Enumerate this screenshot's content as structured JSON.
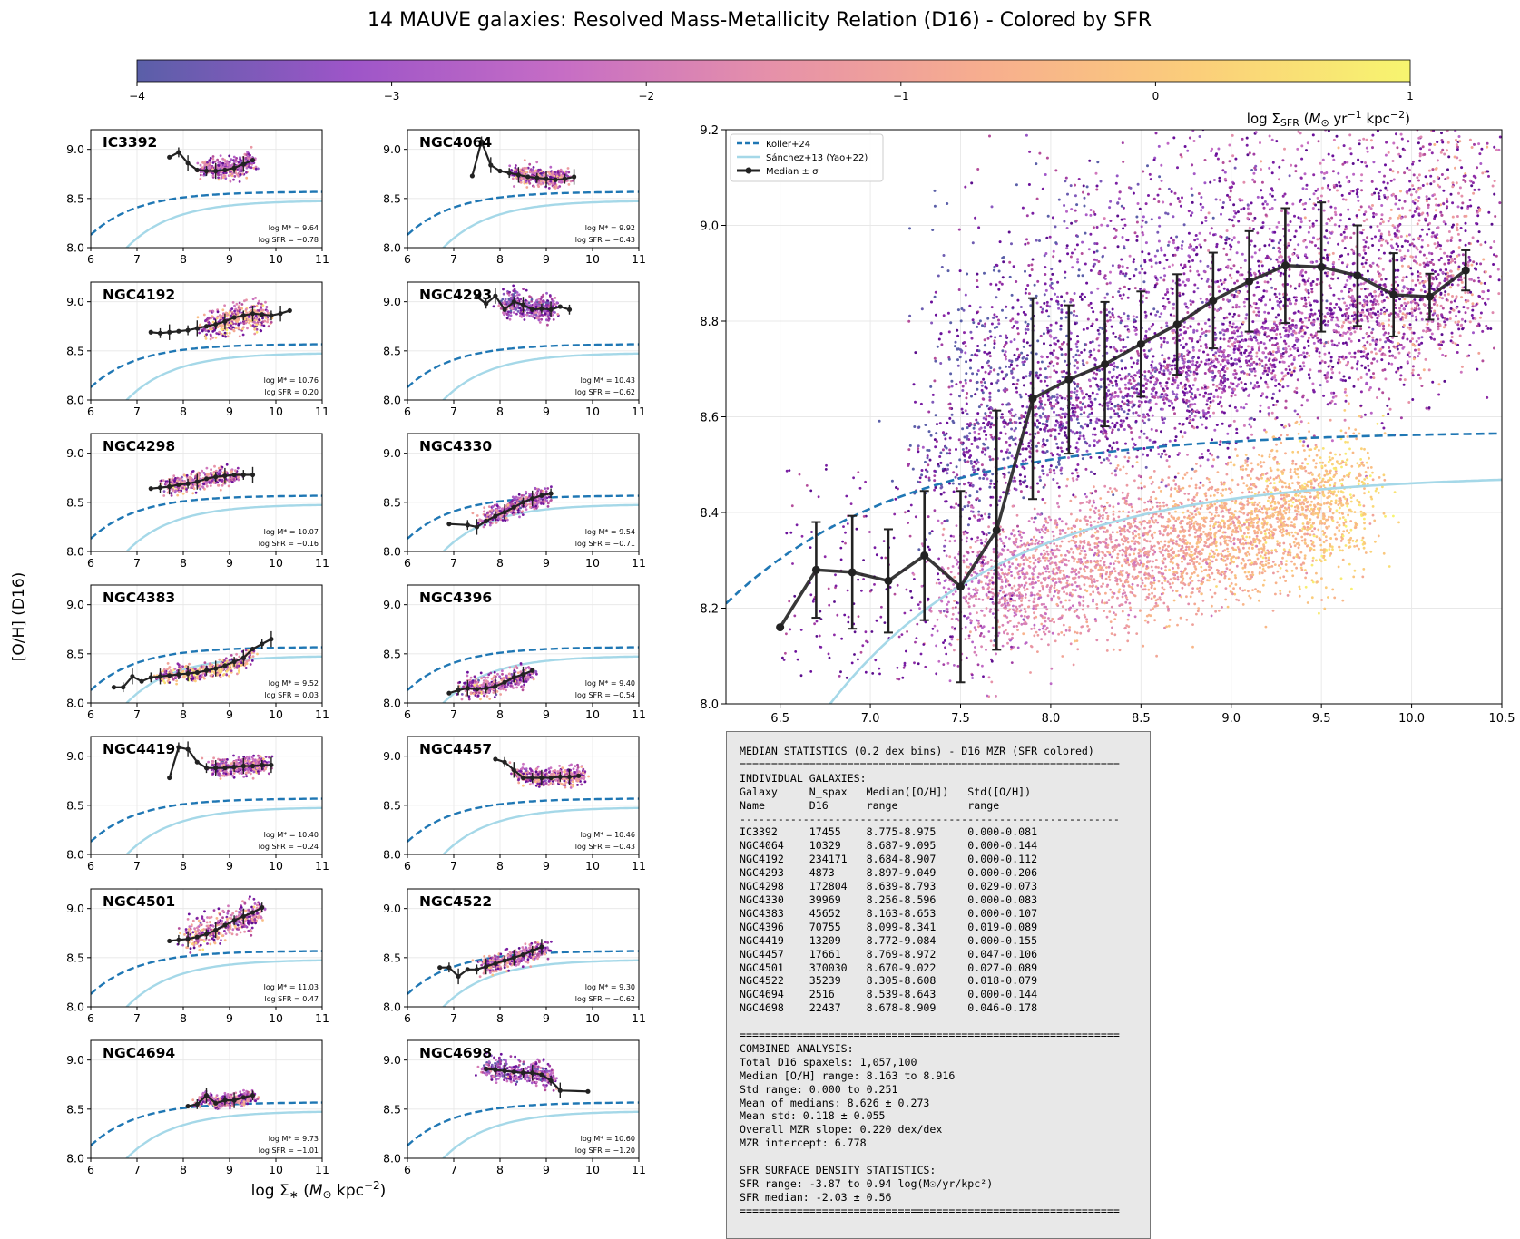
{
  "figure": {
    "title": "14 MAUVE galaxies: Resolved Mass-Metallicity Relation (D16) - Colored by SFR",
    "ylabel": "[O/H] (D16)",
    "xlabel": "log Σ_* (M_⊙ kpc^-2)"
  },
  "colorbar": {
    "ticks": [
      "−4",
      "−3",
      "−2",
      "−1",
      "0",
      "1"
    ],
    "label": "log Σ_SFR (M_⊙ yr^-1 kpc^-2)",
    "range": [
      -4,
      1
    ],
    "colormap": [
      "#5a5fa8",
      "#9d55c8",
      "#c66dc5",
      "#e691a9",
      "#f7ae8e",
      "#fbce7a",
      "#f7f56f"
    ]
  },
  "colors": {
    "koller": "#1f77b4",
    "sanchez": "#a5d8e8",
    "median": "#222222",
    "stats_bg": "#e8e8e8"
  },
  "legend": [
    "Koller+24",
    "Sánchez+13 (Yao+22)",
    "Median ± σ"
  ],
  "chart_data": [
    {
      "type": "scatter",
      "panel": "main",
      "xlim": [
        6.2,
        10.5
      ],
      "ylim": [
        8.0,
        9.2
      ],
      "xticks": [
        "6.5",
        "7.0",
        "7.5",
        "8.0",
        "8.5",
        "9.0",
        "9.5",
        "10.0",
        "10.5"
      ],
      "yticks": [
        "8.0",
        "8.2",
        "8.4",
        "8.6",
        "8.8",
        "9.0",
        "9.2"
      ],
      "grid": true,
      "legend_position": "top-left",
      "series": [
        {
          "name": "Median ± σ",
          "x": [
            6.5,
            6.7,
            6.9,
            7.1,
            7.3,
            7.5,
            7.7,
            7.9,
            8.1,
            8.3,
            8.5,
            8.7,
            8.9,
            9.1,
            9.3,
            9.5,
            9.7,
            9.9,
            10.1,
            10.3
          ],
          "y": [
            8.16,
            8.28,
            8.275,
            8.257,
            8.31,
            8.245,
            8.363,
            8.638,
            8.678,
            8.71,
            8.752,
            8.793,
            8.843,
            8.883,
            8.916,
            8.913,
            8.895,
            8.855,
            8.851,
            8.906
          ],
          "err": [
            0,
            0.1,
            0.118,
            0.108,
            0.135,
            0.2,
            0.25,
            0.21,
            0.155,
            0.13,
            0.11,
            0.105,
            0.1,
            0.105,
            0.12,
            0.135,
            0.105,
            0.087,
            0.048,
            0.042
          ]
        },
        {
          "name": "Koller+24",
          "curve": {
            "form": "y = 8.57 - 0.44*exp(-1.0*(x-6))",
            "style": "dashed"
          }
        },
        {
          "name": "Sánchez+13 (Yao+22)",
          "curve": {
            "form": "y = 8.48 - 0.70*exp(-1.0*(x-6.4))",
            "style": "solid"
          }
        }
      ],
      "cloud_note": "dense spaxel cloud, x ~7.3–10.4, upper branch [O/H] ~8.55–9.2 purple/magenta, lower branch ~8.1–8.6 orange"
    },
    {
      "type": "scatter",
      "panel": "IC3392",
      "x": [
        7.7,
        7.9,
        8.1,
        8.3,
        8.5,
        8.7,
        8.9,
        9.1,
        9.3,
        9.5
      ],
      "y": [
        8.92,
        8.97,
        8.86,
        8.79,
        8.78,
        8.78,
        8.79,
        8.81,
        8.85,
        8.89
      ],
      "logM": "9.64",
      "logSFR": "−0.78",
      "cloud": [
        8.4,
        9.5,
        8.84,
        0.09
      ],
      "col": 0.4
    },
    {
      "type": "scatter",
      "panel": "NGC4064",
      "x": [
        7.4,
        7.6,
        7.8,
        8.0,
        8.2,
        8.4,
        8.6,
        8.8,
        9.0,
        9.2,
        9.4,
        9.6
      ],
      "y": [
        8.73,
        9.08,
        8.84,
        8.78,
        8.76,
        8.74,
        8.72,
        8.71,
        8.7,
        8.69,
        8.7,
        8.72
      ],
      "logM": "9.92",
      "logSFR": "−0.43",
      "cloud": [
        8.3,
        9.4,
        8.76,
        0.08
      ],
      "col": 0.45
    },
    {
      "type": "scatter",
      "panel": "NGC4192",
      "x": [
        7.3,
        7.5,
        7.7,
        7.9,
        8.1,
        8.3,
        8.5,
        8.7,
        8.9,
        9.1,
        9.3,
        9.5,
        9.7,
        9.9,
        10.1,
        10.3
      ],
      "y": [
        8.69,
        8.68,
        8.69,
        8.7,
        8.71,
        8.73,
        8.75,
        8.77,
        8.8,
        8.84,
        8.86,
        8.88,
        8.87,
        8.86,
        8.88,
        8.91
      ],
      "logM": "10.76",
      "logSFR": "0.20",
      "cloud": [
        8.4,
        9.8,
        8.82,
        0.14
      ],
      "col": 0.6
    },
    {
      "type": "scatter",
      "panel": "NGC4293",
      "x": [
        7.5,
        7.7,
        7.9,
        8.1,
        8.3,
        8.5,
        8.7,
        8.9,
        9.1,
        9.3,
        9.5
      ],
      "y": [
        9.05,
        8.98,
        9.06,
        8.92,
        9.0,
        8.97,
        8.92,
        8.93,
        8.92,
        8.95,
        8.92
      ],
      "logM": "10.43",
      "logSFR": "−0.62",
      "cloud": [
        8.0,
        9.2,
        8.95,
        0.11
      ],
      "col": 0.25
    },
    {
      "type": "scatter",
      "panel": "NGC4298",
      "x": [
        7.3,
        7.5,
        7.7,
        7.9,
        8.1,
        8.3,
        8.5,
        8.7,
        8.9,
        9.1,
        9.3,
        9.5
      ],
      "y": [
        8.64,
        8.65,
        8.66,
        8.68,
        8.69,
        8.71,
        8.74,
        8.76,
        8.77,
        8.78,
        8.78,
        8.78
      ],
      "logM": "10.07",
      "logSFR": "−0.16",
      "cloud": [
        7.6,
        9.2,
        8.72,
        0.08
      ],
      "col": 0.5
    },
    {
      "type": "scatter",
      "panel": "NGC4330",
      "x": [
        6.9,
        7.3,
        7.5,
        7.7,
        7.9,
        8.1,
        8.3,
        8.5,
        8.7,
        8.9,
        9.1
      ],
      "y": [
        8.28,
        8.27,
        8.25,
        8.31,
        8.36,
        8.4,
        8.45,
        8.5,
        8.54,
        8.57,
        8.59
      ],
      "logM": "9.54",
      "logSFR": "−0.71",
      "cloud": [
        7.6,
        9.0,
        8.47,
        0.09
      ],
      "col": 0.35
    },
    {
      "type": "scatter",
      "panel": "NGC4383",
      "x": [
        6.5,
        6.7,
        6.9,
        7.1,
        7.3,
        7.5,
        7.7,
        7.9,
        8.1,
        8.3,
        8.5,
        8.7,
        8.9,
        9.1,
        9.3,
        9.5,
        9.7,
        9.9
      ],
      "y": [
        8.16,
        8.16,
        8.27,
        8.22,
        8.26,
        8.27,
        8.28,
        8.29,
        8.3,
        8.31,
        8.33,
        8.35,
        8.38,
        8.42,
        8.46,
        8.55,
        8.6,
        8.65
      ],
      "logM": "9.52",
      "logSFR": "0.03",
      "cloud": [
        7.4,
        9.5,
        8.32,
        0.08
      ],
      "col": 0.7
    },
    {
      "type": "scatter",
      "panel": "NGC4396",
      "x": [
        6.9,
        7.1,
        7.3,
        7.5,
        7.7,
        7.9,
        8.1,
        8.3,
        8.5,
        8.7
      ],
      "y": [
        8.1,
        8.13,
        8.15,
        8.14,
        8.15,
        8.17,
        8.21,
        8.26,
        8.29,
        8.33
      ],
      "logM": "9.40",
      "logSFR": "−0.54",
      "cloud": [
        7.2,
        8.7,
        8.2,
        0.09
      ],
      "col": 0.45
    },
    {
      "type": "scatter",
      "panel": "NGC4419",
      "x": [
        7.7,
        7.9,
        8.1,
        8.3,
        8.5,
        8.7,
        8.9,
        9.1,
        9.3,
        9.5,
        9.7,
        9.9
      ],
      "y": [
        8.78,
        9.09,
        9.07,
        8.94,
        8.88,
        8.88,
        8.88,
        8.89,
        8.9,
        8.9,
        8.91,
        8.91
      ],
      "logM": "10.40",
      "logSFR": "−0.24",
      "cloud": [
        8.6,
        9.8,
        8.91,
        0.08
      ],
      "col": 0.4
    },
    {
      "type": "scatter",
      "panel": "NGC4457",
      "x": [
        7.9,
        8.1,
        8.3,
        8.5,
        8.7,
        8.9,
        9.1,
        9.3,
        9.5,
        9.7
      ],
      "y": [
        8.97,
        8.94,
        8.86,
        8.78,
        8.78,
        8.78,
        8.78,
        8.79,
        8.79,
        8.8
      ],
      "logM": "10.46",
      "logSFR": "−0.43",
      "cloud": [
        8.3,
        9.8,
        8.83,
        0.09
      ],
      "col": 0.45
    },
    {
      "type": "scatter",
      "panel": "NGC4501",
      "x": [
        7.7,
        7.9,
        8.1,
        8.3,
        8.5,
        8.7,
        8.9,
        9.1,
        9.3,
        9.5,
        9.7
      ],
      "y": [
        8.67,
        8.68,
        8.69,
        8.71,
        8.74,
        8.78,
        8.83,
        8.88,
        8.92,
        8.96,
        9.01
      ],
      "logM": "11.03",
      "logSFR": "0.47",
      "cloud": [
        8.0,
        9.7,
        8.83,
        0.13
      ],
      "col": 0.55
    },
    {
      "type": "scatter",
      "panel": "NGC4522",
      "x": [
        6.7,
        6.9,
        7.1,
        7.3,
        7.5,
        7.7,
        7.9,
        8.1,
        8.3,
        8.5,
        8.7,
        8.9
      ],
      "y": [
        8.4,
        8.4,
        8.31,
        8.38,
        8.38,
        8.41,
        8.44,
        8.47,
        8.5,
        8.53,
        8.57,
        8.61
      ],
      "logM": "9.30",
      "logSFR": "−0.62",
      "cloud": [
        7.6,
        9.0,
        8.47,
        0.08
      ],
      "col": 0.5
    },
    {
      "type": "scatter",
      "panel": "NGC4694",
      "x": [
        8.1,
        8.3,
        8.5,
        8.7,
        8.9,
        9.1,
        9.3,
        9.5
      ],
      "y": [
        8.53,
        8.55,
        8.64,
        8.56,
        8.59,
        8.59,
        8.62,
        8.64
      ],
      "logM": "9.73",
      "logSFR": "−1.01",
      "cloud": [
        8.3,
        9.5,
        8.6,
        0.06
      ],
      "col": 0.45
    },
    {
      "type": "scatter",
      "panel": "NGC4698",
      "x": [
        7.7,
        7.9,
        8.1,
        8.3,
        8.5,
        8.7,
        8.9,
        9.1,
        9.3,
        9.9
      ],
      "y": [
        8.91,
        8.9,
        8.89,
        8.88,
        8.87,
        8.87,
        8.85,
        8.79,
        8.69,
        8.68
      ],
      "logM": "10.60",
      "logSFR": "−1.20",
      "cloud": [
        7.6,
        9.2,
        8.9,
        0.1
      ],
      "col": 0.25
    }
  ],
  "small_axes": {
    "xticks": [
      "6",
      "7",
      "8",
      "9",
      "10",
      "11"
    ],
    "yticks": [
      "8.0",
      "8.5",
      "9.0"
    ],
    "xlim": [
      6,
      11
    ],
    "ylim": [
      8.0,
      9.2
    ]
  },
  "stats": {
    "title": "MEDIAN STATISTICS (0.2 dex bins) - D16 MZR (SFR colored)",
    "rule": "============================================================",
    "dash": "------------------------------------------------------------",
    "section1": "INDIVIDUAL GALAXIES:",
    "header1": "Galaxy     N_spax   Median([O/H])   Std([O/H])",
    "header2": "Name       D16      range           range",
    "rows": [
      "IC3392     17455    8.775-8.975     0.000-0.081",
      "NGC4064    10329    8.687-9.095     0.000-0.144",
      "NGC4192    234171   8.684-8.907     0.000-0.112",
      "NGC4293    4873     8.897-9.049     0.000-0.206",
      "NGC4298    172804   8.639-8.793     0.029-0.073",
      "NGC4330    39969    8.256-8.596     0.000-0.083",
      "NGC4383    45652    8.163-8.653     0.000-0.107",
      "NGC4396    70755    8.099-8.341     0.019-0.089",
      "NGC4419    13209    8.772-9.084     0.000-0.155",
      "NGC4457    17661    8.769-8.972     0.047-0.106",
      "NGC4501    370030   8.670-9.022     0.027-0.089",
      "NGC4522    35239    8.305-8.608     0.018-0.079",
      "NGC4694    2516     8.539-8.643     0.000-0.144",
      "NGC4698    22437    8.678-8.909     0.046-0.178"
    ],
    "combined": [
      "COMBINED ANALYSIS:",
      "Total D16 spaxels: 1,057,100",
      "Median [O/H] range: 8.163 to 8.916",
      "Std range: 0.000 to 0.251",
      "Mean of medians: 8.626 ± 0.273",
      "Mean std: 0.118 ± 0.055",
      "Overall MZR slope: 0.220 dex/dex",
      "MZR intercept: 6.778"
    ],
    "sfr": [
      "SFR SURFACE DENSITY STATISTICS:",
      "SFR range: -3.87 to 0.94 log(M☉/yr/kpc²)",
      "SFR median: -2.03 ± 0.56"
    ]
  }
}
